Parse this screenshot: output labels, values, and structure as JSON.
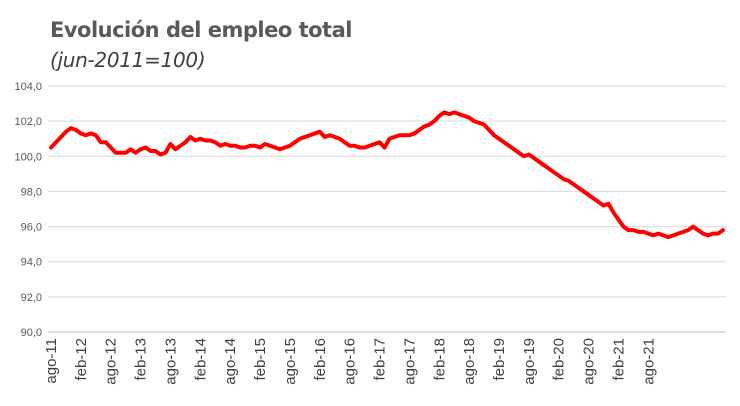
{
  "chart_data": {
    "type": "line",
    "title": "Evolución del empleo total",
    "subtitle": "(jun-2011=100)",
    "xlabel": "",
    "ylabel": "",
    "ylim": [
      90,
      104
    ],
    "yticks": [
      "90,0",
      "92,0",
      "94,0",
      "96,0",
      "98,0",
      "100,0",
      "102,0",
      "104,0"
    ],
    "ytick_values": [
      90,
      92,
      94,
      96,
      98,
      100,
      102,
      104
    ],
    "x_tick_labels": [
      "ago-11",
      "feb-12",
      "ago-12",
      "feb-13",
      "ago-13",
      "feb-14",
      "ago-14",
      "feb-15",
      "ago-15",
      "feb-16",
      "ago-16",
      "feb-17",
      "ago-17",
      "feb-18",
      "ago-18",
      "feb-19",
      "ago-19",
      "feb-20",
      "ago-20",
      "feb-21",
      "ago-21"
    ],
    "grid": "horizontal",
    "line_color": "#ff0000",
    "series": [
      {
        "values": [
          100.5,
          100.8,
          101.1,
          101.4,
          101.6,
          101.5,
          101.3,
          101.2,
          101.3,
          101.2,
          100.8,
          100.8,
          100.5,
          100.2,
          100.2,
          100.2,
          100.4,
          100.2,
          100.4,
          100.5,
          100.3,
          100.3,
          100.1,
          100.2,
          100.7,
          100.4,
          100.6,
          100.8,
          101.1,
          100.9,
          101.0,
          100.9,
          100.9,
          100.8,
          100.6,
          100.7,
          100.6,
          100.6,
          100.5,
          100.5,
          100.6,
          100.6,
          100.5,
          100.7,
          100.6,
          100.5,
          100.4,
          100.5,
          100.6,
          100.8,
          101.0,
          101.1,
          101.2,
          101.3,
          101.4,
          101.1,
          101.2,
          101.1,
          101.0,
          100.8,
          100.6,
          100.6,
          100.5,
          100.5,
          100.6,
          100.7,
          100.8,
          100.5,
          101.0,
          101.1,
          101.2,
          101.2,
          101.2,
          101.3,
          101.5,
          101.7,
          101.8,
          102.0,
          102.3,
          102.5,
          102.4,
          102.5,
          102.4,
          102.3,
          102.2,
          102.0,
          101.9,
          101.8,
          101.5,
          101.2,
          101.0,
          100.8,
          100.6,
          100.4,
          100.2,
          100.0,
          100.1,
          99.9,
          99.7,
          99.5,
          99.3,
          99.1,
          98.9,
          98.7,
          98.6,
          98.4,
          98.2,
          98.0,
          97.8,
          97.6,
          97.4,
          97.2,
          97.3,
          96.8,
          96.4,
          96.0,
          95.8,
          95.8,
          95.7,
          95.7,
          95.6,
          95.5,
          95.6,
          95.5,
          95.4,
          95.5,
          95.6,
          95.7,
          95.8,
          96.0,
          95.8,
          95.6,
          95.5,
          95.6,
          95.6,
          95.8
        ]
      }
    ]
  }
}
